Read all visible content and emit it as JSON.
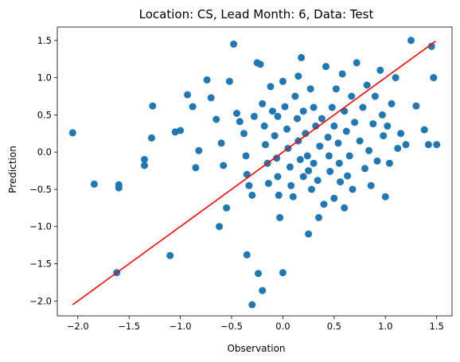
{
  "chart_data": {
    "type": "scatter",
    "title": "Location: CS, Lead Month: 6, Data: Test",
    "xlabel": "Observation",
    "ylabel": "Prediction",
    "xlim": [
      -2.2,
      1.65
    ],
    "ylim": [
      -2.2,
      1.68
    ],
    "xticks": [
      -2.0,
      -1.5,
      -1.0,
      -0.5,
      0.0,
      0.5,
      1.0,
      1.5
    ],
    "xtick_labels": [
      "−2.0",
      "−1.5",
      "−1.0",
      "−0.5",
      "0.0",
      "0.5",
      "1.0",
      "1.5"
    ],
    "yticks": [
      -2.0,
      -1.5,
      -1.0,
      -0.5,
      0.0,
      0.5,
      1.0,
      1.5
    ],
    "ytick_labels": [
      "−2.0",
      "−1.5",
      "−1.0",
      "−0.5",
      "0.0",
      "0.5",
      "1.0",
      "1.5"
    ],
    "grid": false,
    "legend": false,
    "colors": {
      "points": "#1f77b4",
      "line": "#ff0000"
    },
    "line": {
      "x": [
        -2.05,
        1.49
      ],
      "y": [
        -2.05,
        1.49
      ]
    },
    "points": [
      [
        -2.05,
        0.26
      ],
      [
        -1.84,
        -0.43
      ],
      [
        -1.6,
        -0.44
      ],
      [
        -1.6,
        -0.48
      ],
      [
        -1.62,
        -1.62
      ],
      [
        -1.35,
        -0.1
      ],
      [
        -1.35,
        -0.18
      ],
      [
        -1.27,
        0.62
      ],
      [
        -1.28,
        0.19
      ],
      [
        -1.1,
        -1.39
      ],
      [
        -1.05,
        0.27
      ],
      [
        -1.0,
        0.29
      ],
      [
        -0.93,
        0.77
      ],
      [
        -0.88,
        0.61
      ],
      [
        -0.82,
        0.02
      ],
      [
        -0.85,
        -0.21
      ],
      [
        -0.74,
        0.97
      ],
      [
        -0.7,
        0.73
      ],
      [
        -0.65,
        0.44
      ],
      [
        -0.6,
        0.12
      ],
      [
        -0.58,
        -0.18
      ],
      [
        -0.62,
        -1.0
      ],
      [
        -0.55,
        -0.75
      ],
      [
        -0.52,
        0.95
      ],
      [
        -0.48,
        1.45
      ],
      [
        -0.45,
        0.52
      ],
      [
        -0.42,
        0.41
      ],
      [
        -0.38,
        0.25
      ],
      [
        -0.36,
        -0.05
      ],
      [
        -0.35,
        -0.3
      ],
      [
        -0.33,
        -0.45
      ],
      [
        -0.35,
        -1.38
      ],
      [
        -0.3,
        -0.58
      ],
      [
        -0.28,
        0.48
      ],
      [
        -0.25,
        1.2
      ],
      [
        -0.22,
        1.18
      ],
      [
        -0.2,
        0.65
      ],
      [
        -0.18,
        0.35
      ],
      [
        -0.17,
        0.1
      ],
      [
        -0.15,
        -0.15
      ],
      [
        -0.14,
        -0.42
      ],
      [
        -0.24,
        -1.63
      ],
      [
        -0.2,
        -1.86
      ],
      [
        -0.3,
        -2.05
      ],
      [
        -0.12,
        0.88
      ],
      [
        -0.1,
        0.55
      ],
      [
        -0.08,
        0.22
      ],
      [
        -0.06,
        -0.08
      ],
      [
        -0.05,
        -0.33
      ],
      [
        -0.04,
        -0.58
      ],
      [
        -0.03,
        -0.88
      ],
      [
        0.0,
        -1.62
      ],
      [
        0.0,
        0.95
      ],
      [
        0.02,
        0.61
      ],
      [
        0.04,
        0.31
      ],
      [
        0.05,
        0.05
      ],
      [
        0.07,
        -0.2
      ],
      [
        0.08,
        -0.45
      ],
      [
        0.1,
        -0.6
      ],
      [
        0.12,
        0.75
      ],
      [
        0.14,
        0.45
      ],
      [
        0.15,
        0.15
      ],
      [
        0.17,
        -0.1
      ],
      [
        0.18,
        1.27
      ],
      [
        0.2,
        0.55
      ],
      [
        0.2,
        -0.33
      ],
      [
        0.22,
        0.25
      ],
      [
        0.24,
        -0.05
      ],
      [
        0.25,
        -0.25
      ],
      [
        0.27,
        0.85
      ],
      [
        0.28,
        -0.5
      ],
      [
        0.3,
        0.6
      ],
      [
        0.3,
        -0.15
      ],
      [
        0.32,
        0.35
      ],
      [
        0.34,
        -0.38
      ],
      [
        0.36,
        0.08
      ],
      [
        0.38,
        0.45
      ],
      [
        0.4,
        -0.7
      ],
      [
        0.42,
        1.15
      ],
      [
        0.44,
        0.2
      ],
      [
        0.45,
        -0.05
      ],
      [
        0.46,
        -0.26
      ],
      [
        0.48,
        0.6
      ],
      [
        0.5,
        -0.62
      ],
      [
        0.5,
        0.35
      ],
      [
        0.52,
        0.85
      ],
      [
        0.54,
        0.12
      ],
      [
        0.55,
        -0.15
      ],
      [
        0.56,
        -0.4
      ],
      [
        0.58,
        1.05
      ],
      [
        0.6,
        0.55
      ],
      [
        0.62,
        0.28
      ],
      [
        0.63,
        -0.32
      ],
      [
        0.65,
        -0.05
      ],
      [
        0.67,
        0.75
      ],
      [
        0.68,
        -0.5
      ],
      [
        0.7,
        0.4
      ],
      [
        0.72,
        1.2
      ],
      [
        0.75,
        0.15
      ],
      [
        0.78,
        0.6
      ],
      [
        0.8,
        -0.22
      ],
      [
        0.82,
        0.9
      ],
      [
        0.84,
        0.02
      ],
      [
        0.86,
        -0.45
      ],
      [
        0.88,
        0.38
      ],
      [
        0.9,
        0.75
      ],
      [
        0.92,
        -0.12
      ],
      [
        0.95,
        1.1
      ],
      [
        0.97,
        0.5
      ],
      [
        0.98,
        0.22
      ],
      [
        1.0,
        -0.6
      ],
      [
        1.02,
        0.35
      ],
      [
        1.04,
        -0.15
      ],
      [
        1.06,
        0.65
      ],
      [
        1.1,
        1.0
      ],
      [
        1.12,
        0.05
      ],
      [
        1.15,
        0.25
      ],
      [
        1.2,
        0.1
      ],
      [
        1.25,
        1.5
      ],
      [
        1.3,
        0.62
      ],
      [
        1.38,
        0.3
      ],
      [
        1.45,
        1.42
      ],
      [
        1.47,
        1.0
      ],
      [
        1.5,
        0.1
      ],
      [
        1.42,
        0.1
      ],
      [
        0.15,
        1.02
      ],
      [
        -0.05,
        0.48
      ],
      [
        0.35,
        -0.88
      ],
      [
        0.6,
        -0.75
      ],
      [
        0.25,
        -1.1
      ]
    ]
  }
}
